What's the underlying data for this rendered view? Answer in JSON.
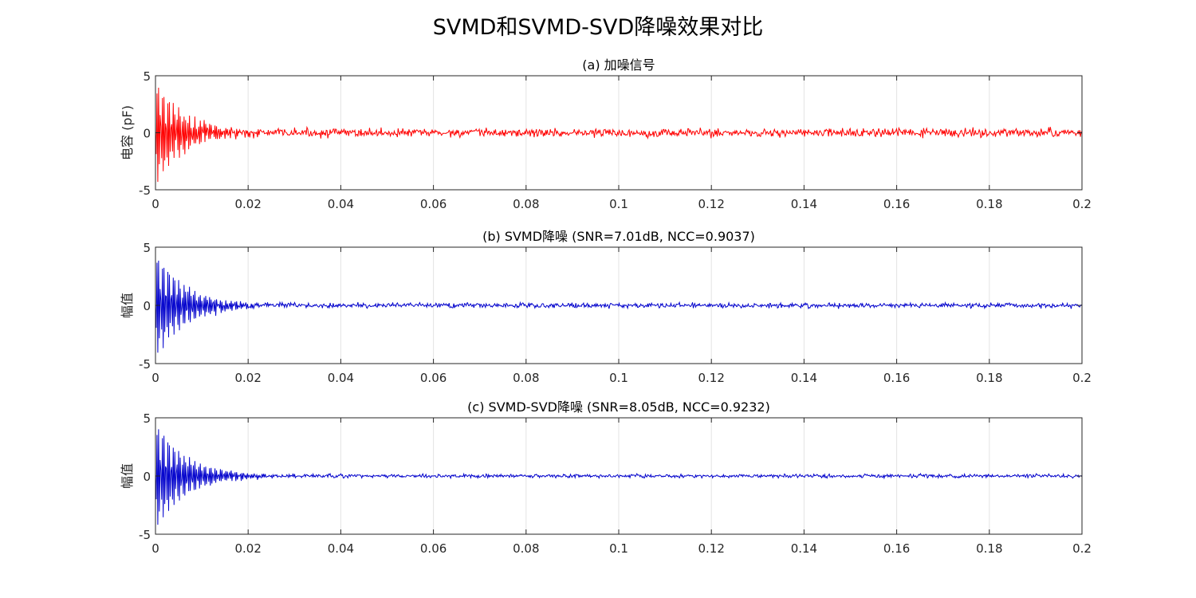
{
  "figure": {
    "title": "SVMD和SVMD-SVD降噪效果对比"
  },
  "chart_data": [
    {
      "type": "line",
      "title": "(a) 加噪信号",
      "xlabel": "",
      "ylabel": "电容 (pF)",
      "xlim": [
        0,
        0.2
      ],
      "ylim": [
        -5,
        5
      ],
      "x_ticks": [
        "0",
        "0.02",
        "0.04",
        "0.06",
        "0.08",
        "0.1",
        "0.12",
        "0.14",
        "0.16",
        "0.18",
        "0.2"
      ],
      "y_ticks": [
        "-5",
        "0",
        "5"
      ],
      "grid": true,
      "color": "#ff0000",
      "signal": {
        "sample_count": 1200,
        "decay_amplitude": 4.6,
        "decay_time_constant": 0.006,
        "oscillation_frequency_hz": 1850,
        "noise_amplitude": 0.28
      }
    },
    {
      "type": "line",
      "title": "(b) SVMD降噪 (SNR=7.01dB, NCC=0.9037)",
      "xlabel": "",
      "ylabel": "幅值",
      "xlim": [
        0,
        0.2
      ],
      "ylim": [
        -5,
        5
      ],
      "x_ticks": [
        "0",
        "0.02",
        "0.04",
        "0.06",
        "0.08",
        "0.1",
        "0.12",
        "0.14",
        "0.16",
        "0.18",
        "0.2"
      ],
      "y_ticks": [
        "-5",
        "0",
        "5"
      ],
      "grid": true,
      "color": "#0000cc",
      "signal": {
        "sample_count": 1200,
        "decay_amplitude": 4.6,
        "decay_time_constant": 0.0065,
        "oscillation_frequency_hz": 1850,
        "noise_amplitude": 0.16
      }
    },
    {
      "type": "line",
      "title": "(c) SVMD-SVD降噪 (SNR=8.05dB, NCC=0.9232)",
      "xlabel": "",
      "ylabel": "幅值",
      "xlim": [
        0,
        0.2
      ],
      "ylim": [
        -5,
        5
      ],
      "x_ticks": [
        "0",
        "0.02",
        "0.04",
        "0.06",
        "0.08",
        "0.1",
        "0.12",
        "0.14",
        "0.16",
        "0.18",
        "0.2"
      ],
      "y_ticks": [
        "-5",
        "0",
        "5"
      ],
      "grid": true,
      "color": "#0000cc",
      "signal": {
        "sample_count": 1200,
        "decay_amplitude": 4.7,
        "decay_time_constant": 0.0065,
        "oscillation_frequency_hz": 1850,
        "noise_amplitude": 0.12
      }
    }
  ]
}
